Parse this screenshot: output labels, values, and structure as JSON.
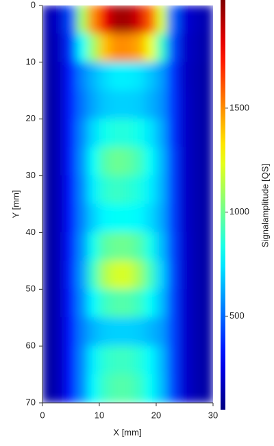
{
  "chart_data": {
    "type": "heatmap",
    "x_label": "X [mm]",
    "y_label": "Y [mm]",
    "colorbar_label": "Signalamplitude [QS]",
    "colormap": "jet",
    "xlim": [
      0,
      30
    ],
    "ylim": [
      0,
      70
    ],
    "y_reversed": true,
    "xticks": [
      0,
      10,
      20,
      30
    ],
    "yticks": [
      0,
      10,
      20,
      30,
      40,
      50,
      60,
      70
    ],
    "clim": [
      50,
      2020
    ],
    "cticks": [
      500,
      1000,
      1500
    ],
    "x": [
      1,
      3,
      5,
      7,
      9,
      11,
      13,
      15,
      17,
      19,
      21,
      23,
      25,
      27,
      29
    ],
    "y": [
      2.5,
      7.5,
      12.5,
      17.5,
      22.5,
      27.5,
      32.5,
      37.5,
      42.5,
      47.5,
      52.5,
      57.5,
      62.5,
      67.5
    ],
    "z": [
      [
        140,
        200,
        450,
        1100,
        1500,
        1800,
        1950,
        1950,
        1850,
        1600,
        1200,
        500,
        220,
        170,
        140
      ],
      [
        130,
        180,
        400,
        800,
        1100,
        1400,
        1500,
        1500,
        1450,
        1250,
        900,
        450,
        200,
        160,
        130
      ],
      [
        120,
        170,
        350,
        550,
        650,
        720,
        760,
        760,
        740,
        680,
        600,
        400,
        190,
        150,
        120
      ],
      [
        110,
        170,
        350,
        520,
        620,
        680,
        700,
        700,
        690,
        640,
        580,
        400,
        200,
        150,
        120
      ],
      [
        110,
        170,
        350,
        560,
        720,
        820,
        850,
        850,
        820,
        740,
        620,
        400,
        200,
        150,
        120
      ],
      [
        110,
        170,
        350,
        580,
        800,
        950,
        1000,
        980,
        920,
        800,
        650,
        420,
        200,
        150,
        120
      ],
      [
        110,
        170,
        340,
        560,
        760,
        870,
        900,
        880,
        840,
        760,
        640,
        420,
        200,
        150,
        120
      ],
      [
        110,
        170,
        340,
        550,
        700,
        780,
        800,
        800,
        780,
        720,
        620,
        420,
        200,
        150,
        120
      ],
      [
        110,
        170,
        350,
        580,
        820,
        960,
        1000,
        1000,
        950,
        830,
        660,
        430,
        210,
        150,
        120
      ],
      [
        110,
        170,
        360,
        600,
        900,
        1120,
        1200,
        1200,
        1100,
        920,
        700,
        440,
        210,
        150,
        120
      ],
      [
        110,
        170,
        350,
        570,
        780,
        900,
        950,
        950,
        900,
        800,
        660,
        430,
        210,
        150,
        120
      ],
      [
        110,
        170,
        340,
        540,
        640,
        690,
        700,
        700,
        690,
        650,
        600,
        430,
        210,
        150,
        120
      ],
      [
        110,
        170,
        340,
        560,
        760,
        870,
        900,
        900,
        860,
        780,
        650,
        430,
        210,
        150,
        120
      ],
      [
        110,
        170,
        340,
        560,
        780,
        900,
        950,
        950,
        900,
        800,
        660,
        430,
        210,
        150,
        120
      ]
    ]
  }
}
